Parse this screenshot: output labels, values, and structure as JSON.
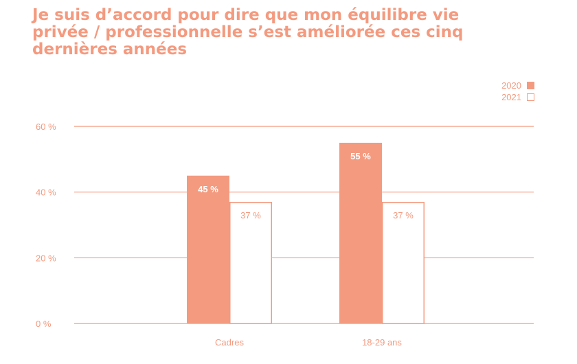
{
  "chart_data": {
    "type": "bar",
    "title_lines": [
      "Je suis d’accord pour dire que mon équilibre vie",
      "privée / professionnelle s’est améliorée ces cinq",
      "dernières années"
    ],
    "categories": [
      "Cadres",
      "18-29 ans"
    ],
    "series": [
      {
        "name": "2020",
        "values": [
          45,
          55
        ],
        "labels": [
          "45 %",
          "55 %"
        ],
        "style": "filled"
      },
      {
        "name": "2021",
        "values": [
          37,
          37
        ],
        "labels": [
          "37 %",
          "37 %"
        ],
        "style": "outline"
      }
    ],
    "y_ticks": [
      {
        "value": 0,
        "label": "0 %"
      },
      {
        "value": 20,
        "label": "20 %"
      },
      {
        "value": 40,
        "label": "40 %"
      },
      {
        "value": 60,
        "label": "60 %"
      }
    ],
    "ylim": [
      0,
      60
    ],
    "grid": true,
    "legend_position": "top-right",
    "colors": {
      "accent": "#f49a7f",
      "background": "#ffffff"
    }
  }
}
